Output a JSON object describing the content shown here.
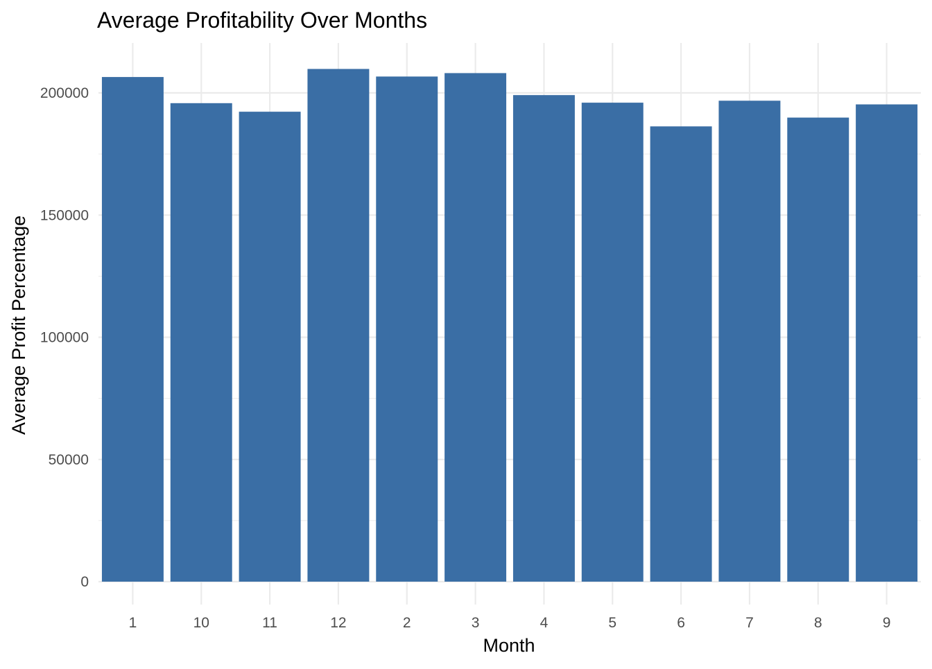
{
  "chart_data": {
    "type": "bar",
    "title": "Average Profitability Over Months",
    "xlabel": "Month",
    "ylabel": "Average Profit Percentage",
    "categories": [
      "1",
      "10",
      "11",
      "12",
      "2",
      "3",
      "4",
      "5",
      "6",
      "7",
      "8",
      "9"
    ],
    "values": [
      206500,
      195800,
      192300,
      209800,
      206700,
      208100,
      199100,
      196000,
      186300,
      196800,
      189900,
      195300
    ],
    "ylim": [
      0,
      220000
    ],
    "yticks": [
      0,
      50000,
      100000,
      150000,
      200000
    ],
    "ytick_labels": [
      "0",
      "50000",
      "100000",
      "150000",
      "200000"
    ],
    "grid": true,
    "legend": "none",
    "colors": {
      "bar": "#3A6EA5",
      "grid": "#EBEBEB",
      "tick_text": "#4D4D4D",
      "title_text": "#000000"
    }
  }
}
